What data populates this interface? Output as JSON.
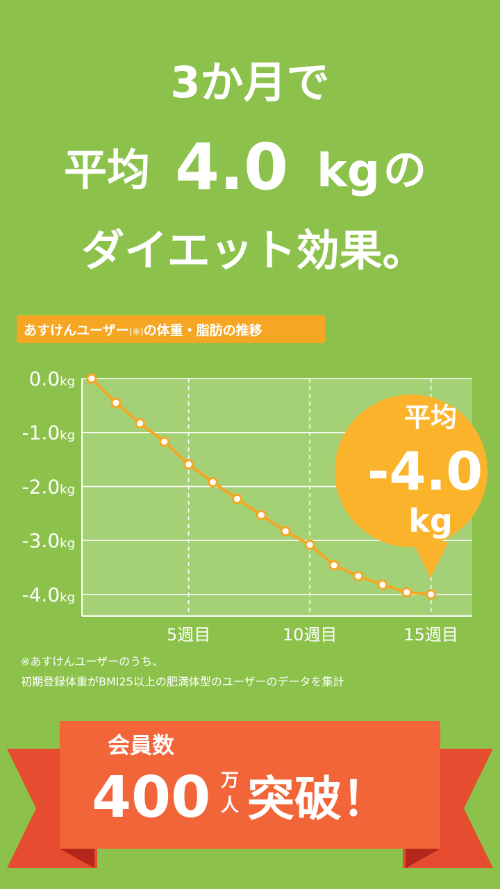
{
  "headline": {
    "line1": "3か月で",
    "prefix": "平均",
    "number": "4.0",
    "unit": "kg",
    "suffix": "の",
    "line3": "ダイエット効果。"
  },
  "chart_data": {
    "type": "line",
    "label": {
      "main": "あすけんユーザー",
      "mark": "(※)",
      "rest": "の体重・脂肪の推移"
    },
    "x": [
      1,
      2,
      3,
      4,
      5,
      6,
      7,
      8,
      9,
      10,
      11,
      12,
      13,
      14,
      15
    ],
    "series": [
      {
        "name": "体重",
        "color": "#f6a623",
        "values": [
          0,
          -0.45,
          -0.83,
          -1.17,
          -1.59,
          -1.92,
          -2.23,
          -2.53,
          -2.83,
          -3.08,
          -3.46,
          -3.66,
          -3.82,
          -3.96,
          -4.0
        ]
      }
    ],
    "xlim": [
      0.6,
      16.7
    ],
    "xticks": [
      {
        "value": 5,
        "label": "5週目"
      },
      {
        "value": 10,
        "label": "10週目"
      },
      {
        "value": 15,
        "label": "15週目"
      }
    ],
    "ylim": [
      -4.4,
      0
    ],
    "yticks": [
      {
        "value": 0,
        "label": "0.0"
      },
      {
        "value": -1,
        "label": "-1.0"
      },
      {
        "value": -2,
        "label": "-2.0"
      },
      {
        "value": -3,
        "label": "-3.0"
      },
      {
        "value": -4,
        "label": "-4.0"
      }
    ],
    "y_unit": "kg",
    "grid": true,
    "callout": {
      "title": "平均",
      "value": "-4.0",
      "unit": "kg"
    }
  },
  "footnote": {
    "line1": "※あすけんユーザーのうち、",
    "line2": "初期登録体重がBMI25以上の肥満体型のユーザーのデータを集計"
  },
  "banner": {
    "label": "会員数",
    "number": "400",
    "unit_top": "万",
    "unit_bottom": "人",
    "text": "突破！"
  }
}
